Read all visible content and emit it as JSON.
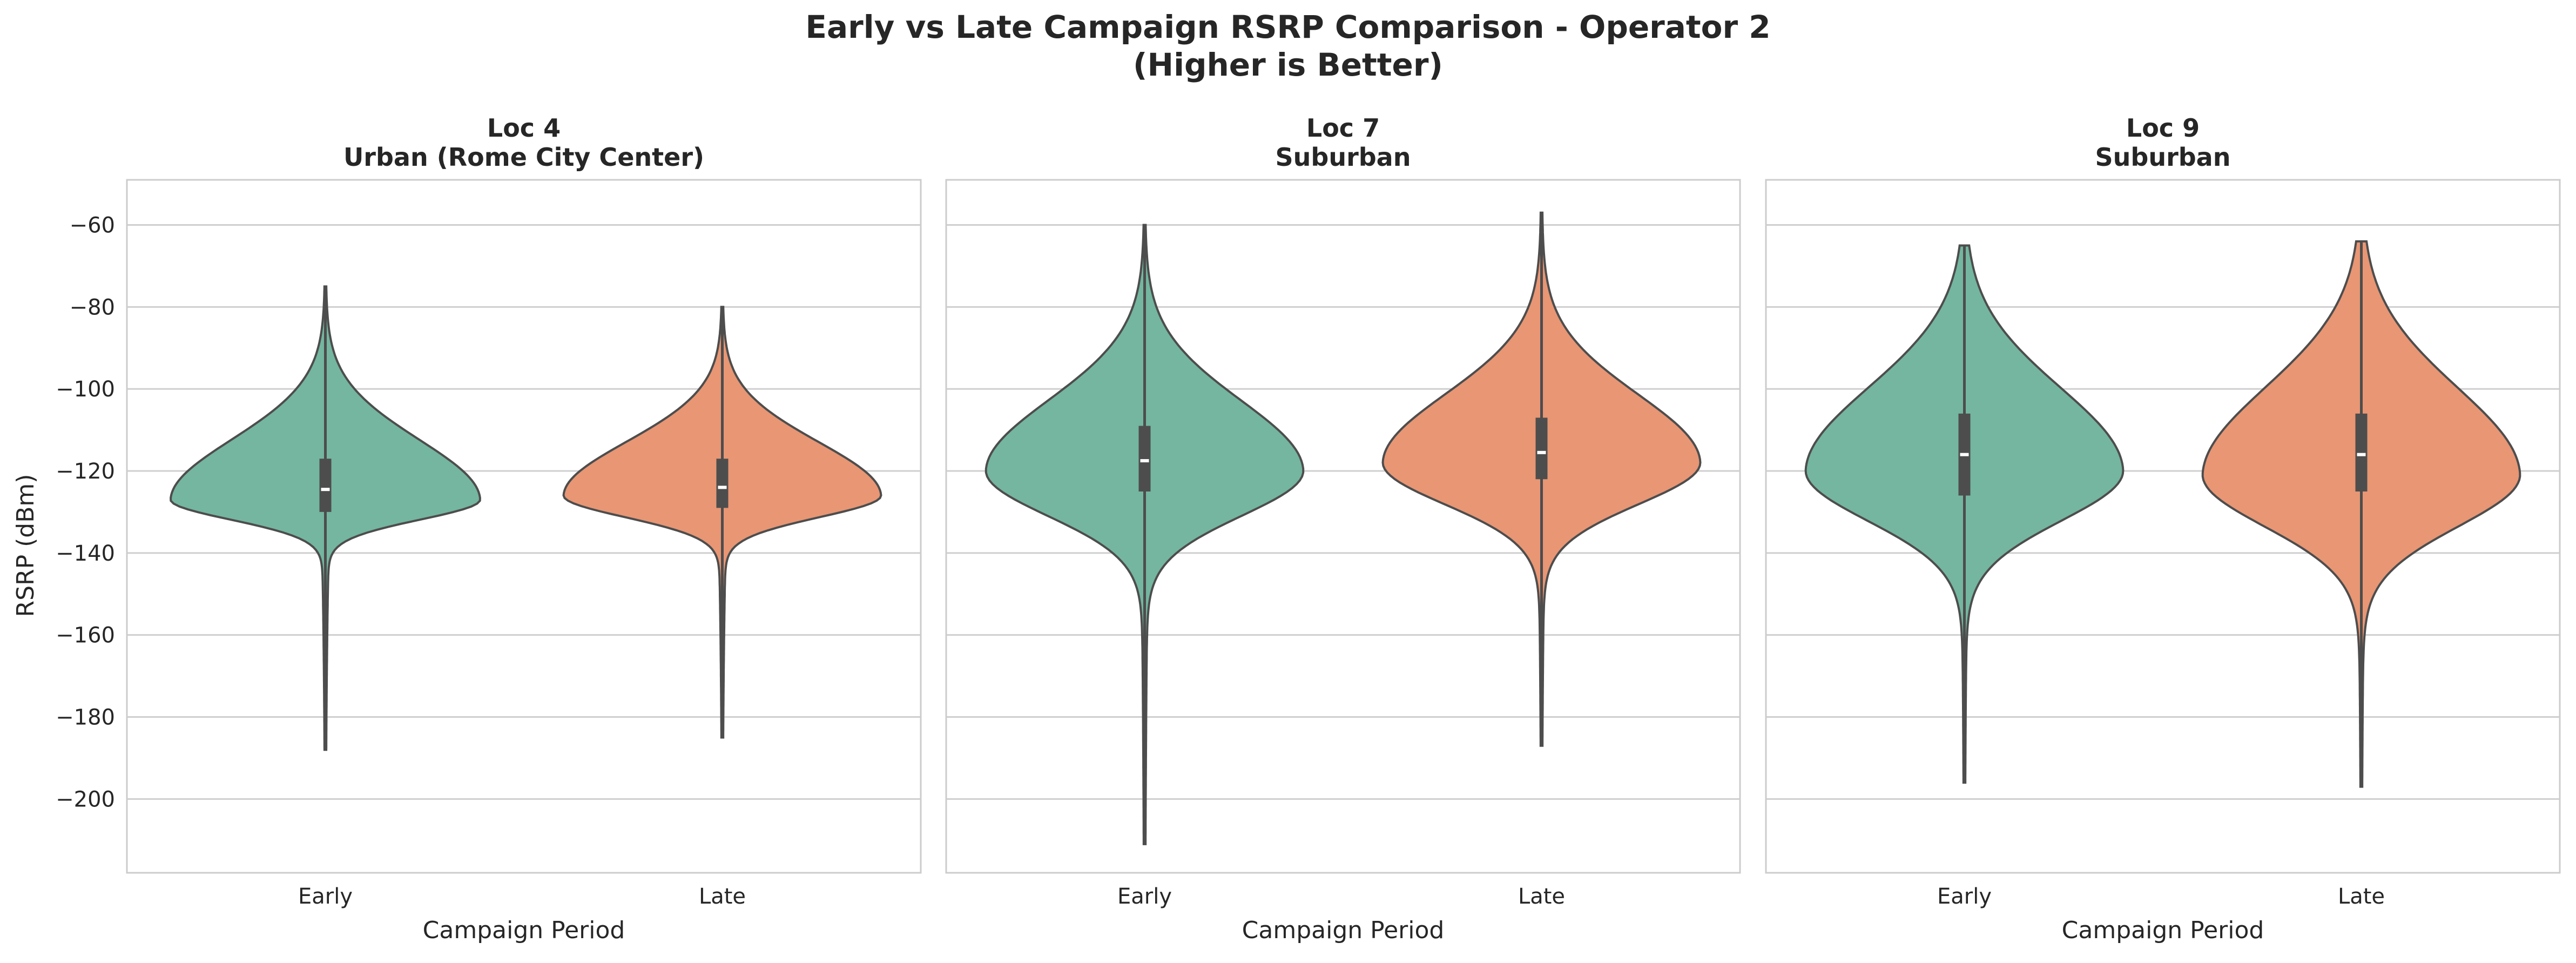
{
  "figure": {
    "title_line1": "Early vs Late Campaign RSRP Comparison - Operator 2",
    "title_line2": "(Higher is Better)",
    "ylabel": "RSRP (dBm)",
    "y_ticks": [
      -60,
      -80,
      -100,
      -120,
      -140,
      -160,
      -180,
      -200
    ],
    "colors": {
      "early": "#74b6a0",
      "late": "#e89674",
      "outline": "#4d4d4d",
      "grid": "#cfcfcf",
      "frame": "#cccccc"
    }
  },
  "chart_data": [
    {
      "type": "violin",
      "title_line1": "Loc 4",
      "title_line2": "Urban (Rome City Center)",
      "xlabel": "Campaign Period",
      "ylabel": "RSRP (dBm)",
      "ylim": [
        -218,
        -49
      ],
      "grid": true,
      "categories": [
        "Early",
        "Late"
      ],
      "series": [
        {
          "category": "Early",
          "min": -188,
          "max": -75,
          "q1": -130,
          "median": -124.5,
          "q3": -117,
          "whisker_low": -139,
          "whisker_high": -99,
          "mode": -127,
          "widest_width": 0.78
        },
        {
          "category": "Late",
          "min": -185,
          "max": -80,
          "q1": -129,
          "median": -124,
          "q3": -117,
          "whisker_low": -139,
          "whisker_high": -101,
          "mode": -126,
          "widest_width": 0.8
        }
      ]
    },
    {
      "type": "violin",
      "title_line1": "Loc 7",
      "title_line2": "Suburban",
      "xlabel": "Campaign Period",
      "ylim": [
        -218,
        -49
      ],
      "grid": true,
      "categories": [
        "Early",
        "Late"
      ],
      "series": [
        {
          "category": "Early",
          "min": -211,
          "max": -60,
          "q1": -125,
          "median": -117.5,
          "q3": -109,
          "whisker_low": -147,
          "whisker_high": -87,
          "mode": -120,
          "widest_width": 0.8
        },
        {
          "category": "Late",
          "min": -187,
          "max": -57,
          "q1": -122,
          "median": -115.5,
          "q3": -107,
          "whisker_low": -143,
          "whisker_high": -86,
          "mode": -118,
          "widest_width": 0.8
        }
      ]
    },
    {
      "type": "violin",
      "title_line1": "Loc 9",
      "title_line2": "Suburban",
      "xlabel": "Campaign Period",
      "ylim": [
        -218,
        -49
      ],
      "grid": true,
      "categories": [
        "Early",
        "Late"
      ],
      "series": [
        {
          "category": "Early",
          "min": -196,
          "max": -65,
          "q1": -126,
          "median": -116,
          "q3": -106,
          "whisker_low": -150,
          "whisker_high": -81,
          "mode": -120,
          "widest_width": 0.8
        },
        {
          "category": "Late",
          "min": -197,
          "max": -64,
          "q1": -125,
          "median": -116,
          "q3": -106,
          "whisker_low": -152,
          "whisker_high": -80,
          "mode": -121,
          "widest_width": 0.8
        }
      ]
    }
  ]
}
